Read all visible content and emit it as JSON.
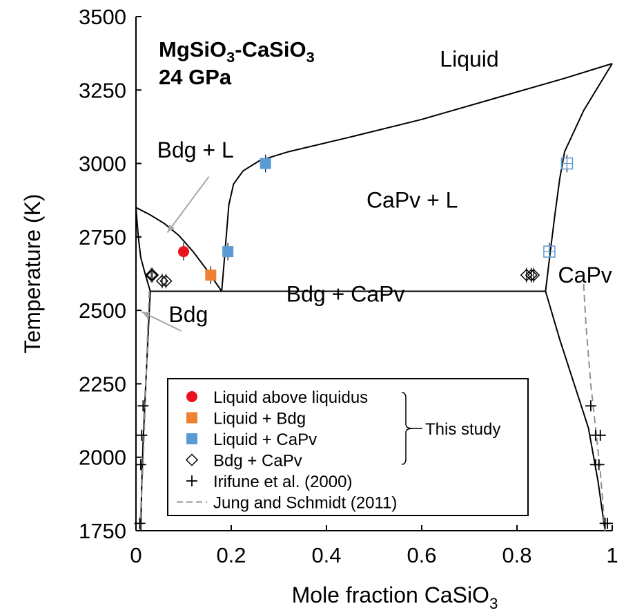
{
  "chart_data": {
    "type": "scatter",
    "title_line1_main": "MgSiO",
    "title_line1_sub": "3",
    "title_line1_mid": "-CaSiO",
    "title_line1_sub2": "3",
    "title_line2": "24 GPa",
    "xlabel_main": "Mole fraction CaSiO",
    "xlabel_sub": "3",
    "ylabel": "Temperature (K)",
    "xlim": [
      0,
      1
    ],
    "ylim": [
      1750,
      3500
    ],
    "x_ticks": [
      "0",
      "0.2",
      "0.4",
      "0.6",
      "0.8",
      "1"
    ],
    "x_tick_values": [
      0,
      0.2,
      0.4,
      0.6,
      0.8,
      1
    ],
    "y_ticks": [
      "1750",
      "2000",
      "2250",
      "2500",
      "2750",
      "3000",
      "3250",
      "3500"
    ],
    "y_tick_values": [
      1750,
      2000,
      2250,
      2500,
      2750,
      3000,
      3250,
      3500
    ],
    "region_labels": [
      {
        "text": "Liquid",
        "x": 0.7,
        "y": 3330
      },
      {
        "text": "Bdg + L",
        "x": 0.125,
        "y": 3020
      },
      {
        "text": "CaPv + L",
        "x": 0.58,
        "y": 2850
      },
      {
        "text": "Bdg",
        "x": 0.11,
        "y": 2460
      },
      {
        "text": "Bdg + CaPv",
        "x": 0.44,
        "y": 2530
      },
      {
        "text": "CaPv",
        "x": 0.943,
        "y": 2595
      }
    ],
    "arrows": [
      {
        "from": [
          0.153,
          2955
        ],
        "to": [
          0.066,
          2765
        ]
      },
      {
        "from": [
          0.095,
          2430
        ],
        "to": [
          0.012,
          2495
        ]
      }
    ],
    "phase_boundaries": [
      {
        "name": "bdg-liquidus",
        "x": [
          0,
          0.03,
          0.06,
          0.09,
          0.12,
          0.15,
          0.18
        ],
        "y": [
          2850,
          2825,
          2795,
          2755,
          2700,
          2635,
          2565
        ]
      },
      {
        "name": "capv-liquidus",
        "x": [
          0.18,
          0.185,
          0.19,
          0.195,
          0.205,
          0.225,
          0.26,
          0.32,
          0.45,
          0.6,
          0.75,
          0.9,
          1.0
        ],
        "y": [
          2565,
          2660,
          2760,
          2860,
          2930,
          2975,
          3010,
          3040,
          3090,
          3150,
          3220,
          3290,
          3340
        ]
      },
      {
        "name": "eutectic",
        "x": [
          0.03,
          0.86
        ],
        "y": [
          2565,
          2565
        ]
      },
      {
        "name": "capv-solidus",
        "x": [
          0.86,
          0.87,
          0.88,
          0.89,
          0.9,
          0.94,
          1.0
        ],
        "y": [
          2565,
          2700,
          2830,
          2950,
          3040,
          3180,
          3340
        ]
      },
      {
        "name": "bdg-solidus",
        "x": [
          0.0,
          0.005,
          0.01,
          0.02,
          0.03
        ],
        "y": [
          2850,
          2750,
          2680,
          2620,
          2565
        ]
      },
      {
        "name": "bdg-solvus",
        "x": [
          0.03,
          0.022,
          0.015,
          0.012,
          0.01
        ],
        "y": [
          2565,
          2300,
          2050,
          1900,
          1750
        ]
      },
      {
        "name": "capv-solvus",
        "x": [
          0.86,
          0.89,
          0.92,
          0.95,
          0.97,
          0.985
        ],
        "y": [
          2565,
          2400,
          2250,
          2100,
          1920,
          1750
        ]
      }
    ],
    "dashed_boundaries": [
      {
        "name": "jung-bdg",
        "x": [
          0.028,
          0.025,
          0.02,
          0.015,
          0.008
        ],
        "y": [
          2565,
          2450,
          2200,
          1980,
          1750
        ]
      },
      {
        "name": "jung-capv",
        "x": [
          0.94,
          0.945,
          0.955,
          0.965,
          0.975,
          0.985
        ],
        "y": [
          2590,
          2450,
          2250,
          2100,
          1950,
          1750
        ]
      }
    ],
    "series": [
      {
        "name": "Liquid above liquidus",
        "marker": "circle",
        "color": "#e8131c",
        "points": [
          [
            0.1,
            2700
          ]
        ],
        "yerr": 30
      },
      {
        "name": "Liquid + Bdg",
        "marker": "square",
        "color": "#f08131",
        "points": [
          [
            0.157,
            2620
          ]
        ],
        "yerr": 30
      },
      {
        "name": "Liquid + CaPv",
        "marker": "square",
        "color": "#5b9bd5",
        "points": [
          [
            0.272,
            3000
          ],
          [
            0.193,
            2700
          ],
          [
            0.905,
            3000
          ],
          [
            0.868,
            2700
          ]
        ],
        "open_points": [
          2,
          3
        ],
        "yerr": 30
      },
      {
        "name": "Bdg + CaPv",
        "marker": "diamond",
        "color": "#000000",
        "points": [
          [
            0.032,
            2620
          ],
          [
            0.035,
            2620
          ],
          [
            0.055,
            2600
          ],
          [
            0.063,
            2600
          ],
          [
            0.82,
            2620
          ],
          [
            0.83,
            2620
          ],
          [
            0.835,
            2620
          ]
        ],
        "yerr": 25
      },
      {
        "name": "Irifune et al. (2000)",
        "marker": "plus",
        "color": "#000000",
        "points": [
          [
            0.015,
            2175
          ],
          [
            0.012,
            2075
          ],
          [
            0.01,
            1975
          ],
          [
            0.008,
            1775
          ],
          [
            0.955,
            2175
          ],
          [
            0.965,
            2075
          ],
          [
            0.975,
            2075
          ],
          [
            0.965,
            1975
          ],
          [
            0.972,
            1975
          ],
          [
            0.985,
            1775
          ],
          [
            0.99,
            1775
          ]
        ]
      },
      {
        "name": "Jung and Schmidt (2011)",
        "marker": "dashed-line",
        "color": "#909090",
        "points": []
      }
    ],
    "legend": {
      "placement": "lower-center",
      "entries": [
        "Liquid above liquidus",
        "Liquid + Bdg",
        "Liquid + CaPv",
        "Bdg + CaPv",
        "Irifune et al. (2000)",
        "Jung and Schmidt (2011)"
      ],
      "group_label": "This study"
    },
    "grid": false
  }
}
